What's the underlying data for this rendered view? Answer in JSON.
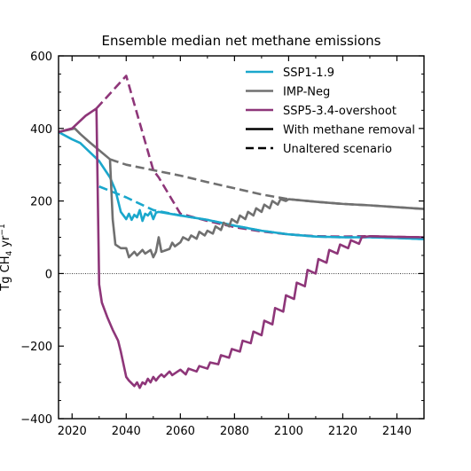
{
  "chart_data": {
    "type": "line",
    "title": "Ensemble median net methane emissions",
    "xlabel": "",
    "ylabel": "Tg CH4 yr−1",
    "ylabel_main": "Tg CH",
    "ylabel_sub": "4",
    "ylabel_rest": " yr",
    "ylabel_sup": "−1",
    "xlim": [
      2015,
      2150
    ],
    "ylim": [
      -400,
      600
    ],
    "xticks": [
      2020,
      2040,
      2060,
      2080,
      2100,
      2120,
      2140
    ],
    "yticks": [
      -400,
      -200,
      0,
      200,
      400,
      600
    ],
    "zero_line": true,
    "legend_position": "top-right",
    "legend": [
      {
        "label": "SSP1-1.9",
        "color": "#1aa7cc",
        "style": "solid"
      },
      {
        "label": "IMP-Neg",
        "color": "#707070",
        "style": "solid"
      },
      {
        "label": "SSP5-3.4-overshoot",
        "color": "#8e3679",
        "style": "solid"
      },
      {
        "label": "With methane removal",
        "color": "#000000",
        "style": "solid"
      },
      {
        "label": "Unaltered scenario",
        "color": "#000000",
        "style": "dashed"
      }
    ],
    "series": [
      {
        "name": "SSP1-1.9",
        "variant": "With methane removal",
        "color": "#1aa7cc",
        "style": "solid",
        "x": [
          2015,
          2020,
          2023,
          2030,
          2034,
          2036,
          2038,
          2040,
          2041,
          2042,
          2043,
          2044,
          2045,
          2046,
          2047,
          2048,
          2049,
          2050,
          2051,
          2052,
          2060,
          2070,
          2080,
          2090,
          2100,
          2110,
          2120,
          2130,
          2140,
          2150
        ],
        "y": [
          390,
          370,
          360,
          310,
          265,
          230,
          170,
          150,
          165,
          148,
          162,
          155,
          175,
          145,
          165,
          160,
          170,
          150,
          168,
          170,
          160,
          148,
          132,
          118,
          108,
          102,
          100,
          100,
          98,
          95
        ]
      },
      {
        "name": "SSP1-1.9",
        "variant": "Unaltered scenario",
        "color": "#1aa7cc",
        "style": "dashed",
        "x": [
          2030,
          2040,
          2050,
          2060,
          2070,
          2080,
          2090,
          2100,
          2110,
          2120,
          2130,
          2140,
          2150
        ],
        "y": [
          240,
          210,
          175,
          160,
          148,
          132,
          118,
          108,
          102,
          100,
          100,
          98,
          95
        ]
      },
      {
        "name": "IMP-Neg",
        "variant": "With methane removal",
        "color": "#707070",
        "style": "solid",
        "x": [
          2015,
          2021,
          2023,
          2026,
          2030,
          2034,
          2035,
          2036,
          2038,
          2040,
          2041,
          2043,
          2044,
          2046,
          2047,
          2049,
          2050,
          2051,
          2052,
          2053,
          2056,
          2057,
          2058,
          2060,
          2061,
          2063,
          2064,
          2066,
          2067,
          2069,
          2070,
          2072,
          2073,
          2075,
          2076,
          2078,
          2079,
          2081,
          2082,
          2084,
          2085,
          2087,
          2088,
          2090,
          2091,
          2093,
          2094,
          2096,
          2097,
          2099,
          2100,
          2110,
          2120,
          2130,
          2140,
          2150
        ],
        "y": [
          390,
          400,
          385,
          365,
          340,
          315,
          150,
          80,
          70,
          70,
          45,
          60,
          50,
          65,
          55,
          65,
          45,
          60,
          100,
          60,
          68,
          85,
          75,
          86,
          100,
          92,
          105,
          96,
          115,
          105,
          118,
          110,
          130,
          120,
          140,
          130,
          150,
          140,
          160,
          150,
          170,
          160,
          180,
          170,
          190,
          180,
          200,
          190,
          205,
          200,
          205,
          198,
          192,
          188,
          183,
          178
        ]
      },
      {
        "name": "IMP-Neg",
        "variant": "Unaltered scenario",
        "color": "#707070",
        "style": "dashed",
        "x": [
          2034,
          2040,
          2050,
          2060,
          2070,
          2080,
          2090,
          2100,
          2110,
          2120,
          2130,
          2140,
          2150
        ],
        "y": [
          315,
          300,
          285,
          270,
          252,
          235,
          218,
          205,
          198,
          192,
          188,
          183,
          178
        ]
      },
      {
        "name": "SSP5-3.4-overshoot",
        "variant": "With methane removal",
        "color": "#8e3679",
        "style": "solid",
        "x": [
          2015,
          2020,
          2025,
          2029,
          2030,
          2031,
          2033,
          2035,
          2037,
          2038,
          2040,
          2041,
          2043,
          2044,
          2045,
          2046,
          2047,
          2048,
          2049,
          2050,
          2051,
          2052,
          2053,
          2054,
          2056,
          2057,
          2059,
          2060,
          2062,
          2063,
          2066,
          2067,
          2070,
          2071,
          2074,
          2075,
          2078,
          2079,
          2082,
          2083,
          2086,
          2087,
          2090,
          2091,
          2094,
          2095,
          2098,
          2099,
          2102,
          2103,
          2106,
          2107,
          2110,
          2111,
          2114,
          2115,
          2118,
          2119,
          2122,
          2123,
          2126,
          2127,
          2130,
          2140,
          2150
        ],
        "y": [
          390,
          400,
          435,
          455,
          -30,
          -80,
          -120,
          -155,
          -185,
          -215,
          -285,
          -295,
          -310,
          -300,
          -315,
          -300,
          -305,
          -290,
          -300,
          -285,
          -295,
          -285,
          -278,
          -285,
          -270,
          -280,
          -270,
          -265,
          -278,
          -262,
          -270,
          -255,
          -262,
          -245,
          -250,
          -225,
          -232,
          -208,
          -215,
          -185,
          -192,
          -160,
          -170,
          -130,
          -140,
          -95,
          -105,
          -60,
          -70,
          -25,
          -35,
          10,
          0,
          40,
          30,
          65,
          55,
          80,
          70,
          92,
          82,
          100,
          103,
          101,
          100
        ]
      },
      {
        "name": "SSP5-3.4-overshoot",
        "variant": "Unaltered scenario",
        "color": "#8e3679",
        "style": "dashed",
        "x": [
          2029,
          2040,
          2050,
          2052,
          2060,
          2070,
          2080,
          2090,
          2100,
          2110,
          2120,
          2130,
          2140,
          2150
        ],
        "y": [
          455,
          545,
          285,
          265,
          165,
          145,
          128,
          116,
          108,
          103,
          102,
          103,
          101,
          100
        ]
      }
    ]
  }
}
